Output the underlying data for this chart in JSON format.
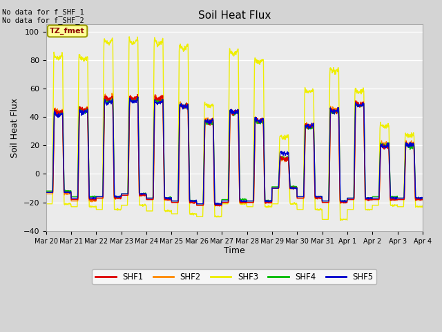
{
  "title": "Soil Heat Flux",
  "ylabel": "Soil Heat Flux",
  "xlabel": "Time",
  "ylim": [
    -40,
    105
  ],
  "yticks": [
    -40,
    -20,
    0,
    20,
    40,
    60,
    80,
    100
  ],
  "background_color": "#ebebeb",
  "grid_color": "#cccccc",
  "annotation_top_left": "No data for f_SHF_1\nNo data for f_SHF_2",
  "tz_label": "TZ_fmet",
  "legend_labels": [
    "SHF1",
    "SHF2",
    "SHF3",
    "SHF4",
    "SHF5"
  ],
  "legend_colors": [
    "#dd0000",
    "#ff8800",
    "#eeee00",
    "#00bb00",
    "#0000cc"
  ],
  "x_tick_labels": [
    "Mar 20",
    "Mar 21",
    "Mar 22",
    "Mar 23",
    "Mar 24",
    "Mar 25",
    "Mar 26",
    "Mar 27",
    "Mar 28",
    "Mar 29",
    "Mar 30",
    "Mar 31",
    "Apr 1",
    "Apr 2",
    "Apr 3",
    "Apr 4"
  ],
  "n_days": 15
}
